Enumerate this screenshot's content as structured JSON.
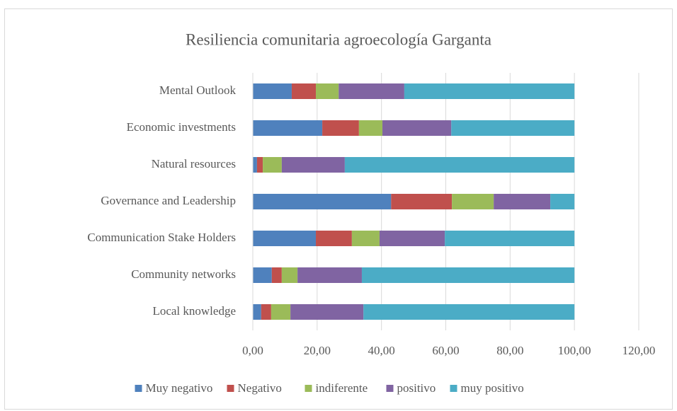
{
  "chart_data": {
    "type": "stacked-bar-horizontal",
    "title": "Resiliencia comunitaria agroecología Garganta",
    "categories": [
      "Mental Outlook",
      "Economic investments",
      "Natural resources",
      "Governance and Leadership",
      "Communication Stake Holders",
      "Community networks",
      "Local knowledge"
    ],
    "series": [
      {
        "name": "Muy negativo",
        "color": "#4f81bd",
        "values": [
          12.1,
          21.6,
          1.3,
          43.0,
          19.6,
          5.9,
          2.6
        ]
      },
      {
        "name": "Negativo",
        "color": "#c0504d",
        "values": [
          7.5,
          11.4,
          1.8,
          18.9,
          11.2,
          3.1,
          3.1
        ]
      },
      {
        "name": "indiferente",
        "color": "#9bbb59",
        "values": [
          7.1,
          7.3,
          5.9,
          13.0,
          8.6,
          4.9,
          6.0
        ]
      },
      {
        "name": "positivo",
        "color": "#8064a2",
        "values": [
          20.4,
          21.4,
          19.6,
          17.6,
          20.3,
          20.0,
          22.7
        ]
      },
      {
        "name": "muy positivo",
        "color": "#4bacc6",
        "values": [
          52.9,
          38.3,
          71.4,
          7.5,
          40.3,
          66.1,
          65.6
        ]
      }
    ],
    "xlim": [
      0,
      120
    ],
    "xticks": [
      {
        "value": 0,
        "label": "0,00"
      },
      {
        "value": 20,
        "label": "20,00"
      },
      {
        "value": 40,
        "label": "40,00"
      },
      {
        "value": 60,
        "label": "60,00"
      },
      {
        "value": 80,
        "label": "80,00"
      },
      {
        "value": 100,
        "label": "100,00"
      },
      {
        "value": 120,
        "label": "120,00"
      }
    ],
    "grid": true,
    "legend": "bottom"
  }
}
